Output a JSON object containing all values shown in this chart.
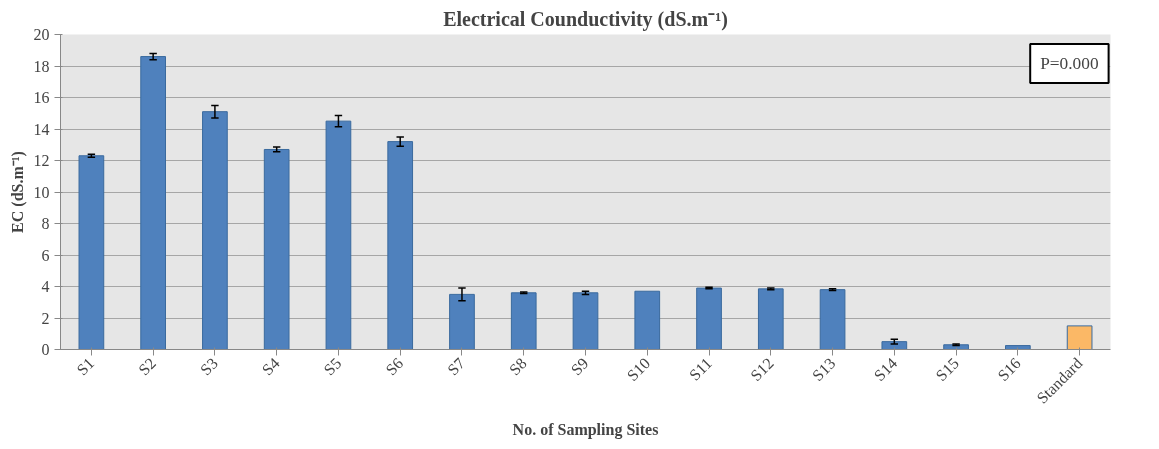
{
  "chart_data": {
    "type": "bar",
    "title": "Electrical Counductivity (dS.m⁻¹)",
    "xlabel": "No. of Sampling Sites",
    "ylabel": "EC (dS.m⁻¹)",
    "categories": [
      "S1",
      "S2",
      "S3",
      "S4",
      "S5",
      "S6",
      "S7",
      "S8",
      "S9",
      "S10",
      "S11",
      "S12",
      "S13",
      "S14",
      "S15",
      "S16",
      "Standard"
    ],
    "values": [
      12.3,
      18.6,
      15.1,
      12.7,
      14.5,
      13.2,
      3.5,
      3.6,
      3.6,
      3.7,
      3.9,
      3.85,
      3.8,
      0.5,
      0.3,
      0.25,
      1.5
    ],
    "errors": [
      0.1,
      0.2,
      0.4,
      0.15,
      0.35,
      0.3,
      0.4,
      0.05,
      0.1,
      null,
      0.05,
      0.05,
      0.05,
      0.15,
      0.05,
      null,
      null
    ],
    "colors": [
      "#4f81bd",
      "#4f81bd",
      "#4f81bd",
      "#4f81bd",
      "#4f81bd",
      "#4f81bd",
      "#4f81bd",
      "#4f81bd",
      "#4f81bd",
      "#4f81bd",
      "#4f81bd",
      "#4f81bd",
      "#4f81bd",
      "#4f81bd",
      "#4f81bd",
      "#4f81bd",
      "#fbb866"
    ],
    "ylim": [
      0,
      20
    ],
    "yticks": [
      0,
      2,
      4,
      6,
      8,
      10,
      12,
      14,
      16,
      18,
      20
    ],
    "grid": "y",
    "annotations": [
      "P=0.000"
    ]
  }
}
